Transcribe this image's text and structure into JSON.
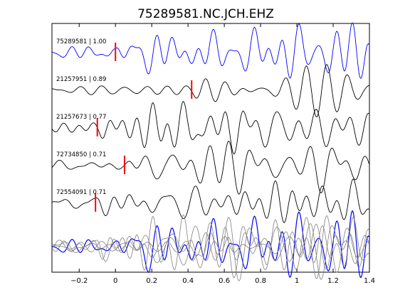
{
  "chart_data": {
    "type": "line",
    "title": "75289581.NC.JCH.EHZ",
    "xlabel": "",
    "ylabel": "",
    "xlim": [
      -0.35,
      1.4
    ],
    "xticks": [
      -0.2,
      0,
      0.2,
      0.4,
      0.6,
      0.8,
      1,
      1.2,
      1.4
    ],
    "xtick_labels": [
      "−0.2",
      "0",
      "0.2",
      "0.4",
      "0.6",
      "0.8",
      "1",
      "1.2",
      "1.4"
    ],
    "grid": false,
    "legend": "none",
    "traces": [
      {
        "label": "75289581 | 1.00",
        "color": "#0000ff",
        "pick_time": 0.0,
        "seed": 1
      },
      {
        "label": "21257951 | 0.89",
        "color": "#000000",
        "pick_time": 0.42,
        "seed": 2
      },
      {
        "label": "21257673 | 0.77",
        "color": "#000000",
        "pick_time": -0.1,
        "seed": 3
      },
      {
        "label": "72734850 | 0.71",
        "color": "#000000",
        "pick_time": 0.05,
        "seed": 4
      },
      {
        "label": "72554091 | 0.71",
        "color": "#000000",
        "pick_time": -0.11,
        "seed": 5
      }
    ],
    "stack": {
      "template_color": "#0000ff",
      "others_color": "#808080"
    },
    "pick_color": "#ff0000"
  }
}
